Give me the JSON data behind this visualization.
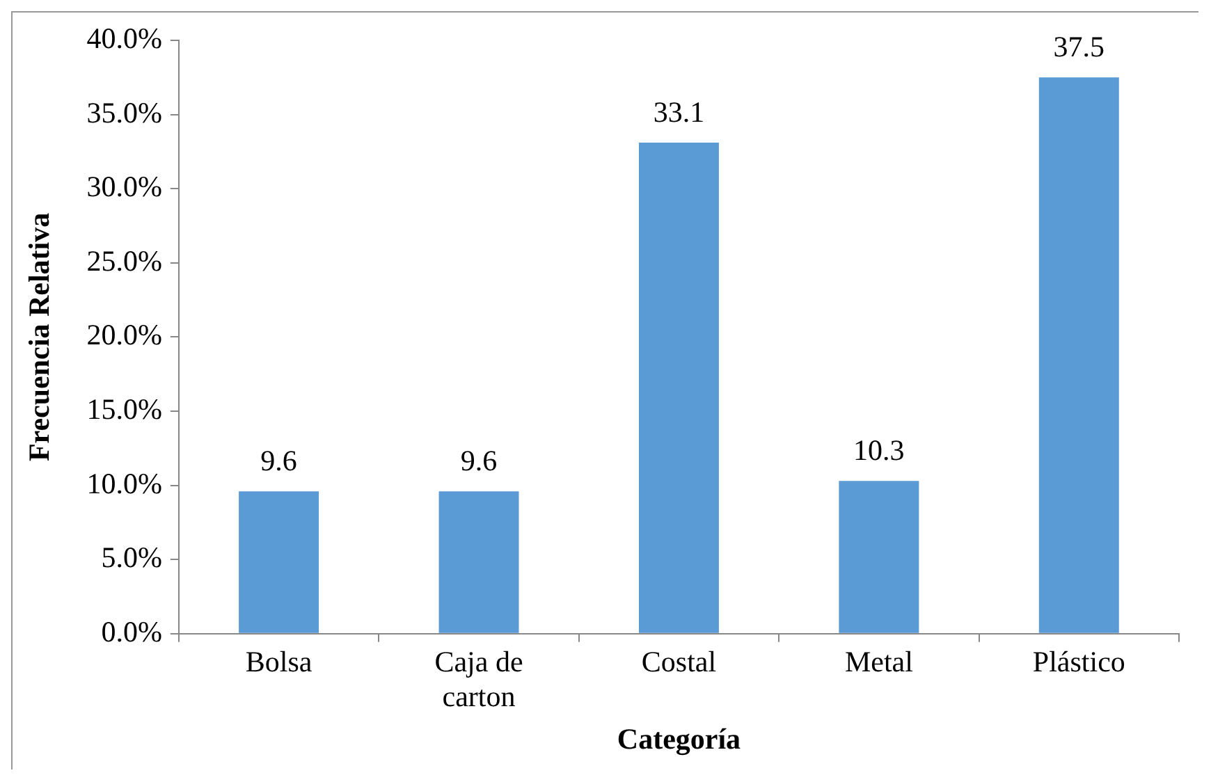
{
  "chart_data": {
    "type": "bar",
    "xlabel": "Categoría",
    "ylabel": "Frecuencia Relativa",
    "categories": [
      "Bolsa",
      "Caja de carton",
      "Costal",
      "Metal",
      "Plástico"
    ],
    "values": [
      9.6,
      9.6,
      33.1,
      10.3,
      37.5
    ],
    "color": "#5b9bd5",
    "ylim": [
      0,
      40
    ],
    "yticks": [
      {
        "value": 0,
        "label": "0.0%"
      },
      {
        "value": 5,
        "label": "5.0%"
      },
      {
        "value": 10,
        "label": "10.0%"
      },
      {
        "value": 15,
        "label": "15.0%"
      },
      {
        "value": 20,
        "label": "20.0%"
      },
      {
        "value": 25,
        "label": "25.0%"
      },
      {
        "value": 30,
        "label": "30.0%"
      },
      {
        "value": 35,
        "label": "35.0%"
      },
      {
        "value": 40,
        "label": "40.0%"
      }
    ],
    "data_labels": true,
    "grid": false,
    "legend": false
  }
}
